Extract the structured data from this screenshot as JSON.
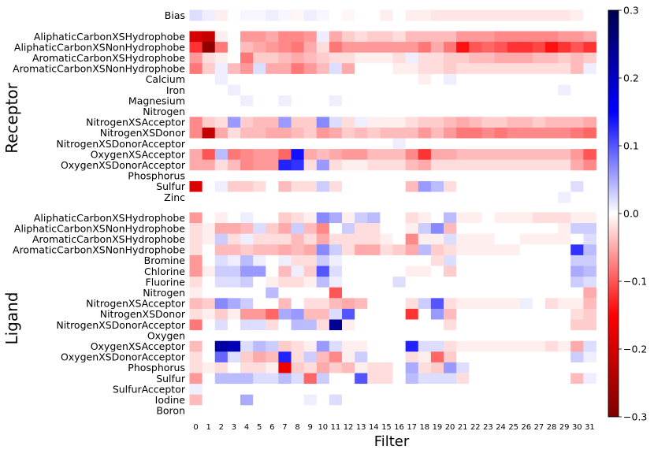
{
  "chart_data": {
    "type": "heatmap",
    "xlabel": "Filter",
    "x_ticks": [
      "0",
      "1",
      "2",
      "3",
      "4",
      "5",
      "6",
      "7",
      "8",
      "9",
      "10",
      "11",
      "12",
      "13",
      "14",
      "15",
      "16",
      "17",
      "18",
      "19",
      "20",
      "21",
      "22",
      "23",
      "24",
      "25",
      "26",
      "27",
      "28",
      "29",
      "30",
      "31"
    ],
    "group_labels": [
      "Receptor",
      "Ligand"
    ],
    "bias_label": "Bias",
    "receptor_rows": [
      "AliphaticCarbonXSHydrophobe",
      "AliphaticCarbonXSNonHydrophobe",
      "AromaticCarbonXSHydrophobe",
      "AromaticCarbonXSNonHydrophobe",
      "Calcium",
      "Iron",
      "Magnesium",
      "Nitrogen",
      "NitrogenXSAcceptor",
      "NitrogenXSDonor",
      "NitrogenXSDonorAcceptor",
      "OxygenXSAcceptor",
      "OxygenXSDonorAcceptor",
      "Phosphorus",
      "Sulfur",
      "Zinc"
    ],
    "ligand_rows": [
      "AliphaticCarbonXSHydrophobe",
      "AliphaticCarbonXSNonHydrophobe",
      "AromaticCarbonXSHydrophobe",
      "AromaticCarbonXSNonHydrophobe",
      "Bromine",
      "Chlorine",
      "Fluorine",
      "Nitrogen",
      "NitrogenXSAcceptor",
      "NitrogenXSDonor",
      "NitrogenXSDonorAcceptor",
      "Oxygen",
      "OxygenXSAcceptor",
      "OxygenXSDonorAcceptor",
      "Phosphorus",
      "Sulfur",
      "SulfurAcceptor",
      "Iodine",
      "Boron"
    ],
    "colorbar": {
      "min": -0.3,
      "max": 0.3,
      "colormap": "seismic_r",
      "ticks": [
        "0.3",
        "0.2",
        "0.1",
        "0.0",
        "−0.1",
        "−0.2",
        "−0.3"
      ]
    },
    "bias_values": [
      0.02,
      0.01,
      -0.01,
      0,
      0.005,
      0.005,
      0.01,
      0.005,
      -0.005,
      0.01,
      0.005,
      0,
      -0.005,
      0,
      0,
      -0.01,
      0,
      -0.01,
      -0.01,
      -0.015,
      -0.015,
      -0.015,
      -0.015,
      -0.015,
      -0.015,
      -0.015,
      -0.015,
      -0.015,
      -0.015,
      -0.015,
      -0.01,
      0
    ],
    "receptor_values": [
      [
        -0.2,
        -0.22,
        -0.01,
        0,
        -0.06,
        -0.06,
        -0.05,
        -0.07,
        -0.07,
        -0.06,
        0.01,
        -0.05,
        -0.03,
        -0.02,
        -0.03,
        -0.03,
        -0.02,
        -0.04,
        -0.04,
        -0.04,
        -0.04,
        -0.06,
        -0.06,
        -0.06,
        -0.07,
        -0.07,
        -0.07,
        -0.07,
        -0.07,
        -0.06,
        -0.06,
        -0.05
      ],
      [
        -0.12,
        -0.28,
        -0.08,
        0,
        -0.04,
        -0.05,
        -0.06,
        -0.07,
        -0.08,
        -0.05,
        -0.02,
        -0.08,
        -0.06,
        -0.06,
        -0.06,
        -0.06,
        -0.06,
        -0.06,
        -0.08,
        -0.05,
        -0.08,
        -0.14,
        -0.1,
        -0.09,
        -0.1,
        -0.12,
        -0.12,
        -0.11,
        -0.14,
        -0.12,
        -0.1,
        -0.12
      ],
      [
        -0.06,
        -0.02,
        -0.01,
        0,
        -0.08,
        -0.03,
        -0.03,
        -0.04,
        -0.05,
        -0.04,
        -0.03,
        -0.02,
        -0.02,
        -0.01,
        -0.01,
        -0.01,
        -0.02,
        0.01,
        -0.02,
        -0.02,
        -0.03,
        -0.03,
        -0.04,
        -0.04,
        -0.05,
        -0.05,
        -0.05,
        -0.04,
        -0.04,
        -0.03,
        -0.04,
        -0.03
      ],
      [
        -0.08,
        -0.03,
        0.01,
        -0.04,
        -0.06,
        0.02,
        -0.05,
        -0.05,
        -0.08,
        -0.06,
        -0.04,
        0.02,
        -0.05,
        0,
        0,
        0,
        -0.01,
        -0.01,
        -0.02,
        -0.02,
        -0.03,
        -0.02,
        -0.02,
        -0.02,
        -0.02,
        -0.02,
        -0.02,
        -0.02,
        -0.02,
        -0.02,
        -0.04,
        0.01
      ],
      [
        0,
        0,
        0.01,
        0,
        0,
        0,
        0,
        0,
        0,
        0,
        0,
        0,
        0,
        0,
        0,
        0,
        0,
        0,
        -0.01,
        0,
        0.01,
        0,
        0,
        0,
        0,
        0,
        0,
        0,
        0,
        0,
        0,
        0
      ],
      [
        0,
        0,
        0,
        0.01,
        0,
        0,
        0,
        0,
        0,
        0,
        0,
        0,
        0,
        0,
        0,
        0,
        0,
        0,
        0,
        0,
        0,
        0,
        0,
        0,
        0,
        0,
        0,
        0,
        0,
        0.01,
        0,
        0
      ],
      [
        0,
        0,
        0,
        0,
        0.01,
        0,
        0,
        0.01,
        0,
        0,
        0,
        0.01,
        0,
        0,
        0,
        0,
        0,
        0,
        0,
        0,
        0,
        0,
        0,
        0,
        0,
        0,
        0,
        0,
        0,
        0,
        0,
        0
      ],
      [
        0,
        0,
        0,
        0,
        0,
        0,
        0,
        0,
        0,
        0,
        0,
        0,
        0,
        0,
        0,
        0,
        0,
        0,
        0,
        0,
        0,
        0,
        0,
        0,
        0,
        0,
        0,
        0,
        0,
        0,
        0,
        0
      ],
      [
        -0.07,
        -0.03,
        -0.02,
        0.06,
        -0.03,
        -0.04,
        -0.04,
        0.06,
        -0.03,
        -0.03,
        0.07,
        0.02,
        -0.02,
        0.01,
        -0.01,
        -0.01,
        -0.01,
        -0.02,
        -0.03,
        -0.03,
        -0.04,
        -0.05,
        -0.04,
        -0.03,
        -0.03,
        -0.04,
        -0.04,
        -0.03,
        -0.04,
        -0.04,
        -0.04,
        -0.05
      ],
      [
        -0.07,
        -0.22,
        -0.05,
        -0.02,
        -0.04,
        -0.04,
        -0.05,
        -0.05,
        -0.04,
        -0.03,
        -0.06,
        -0.05,
        -0.03,
        -0.04,
        -0.03,
        -0.04,
        -0.04,
        -0.04,
        -0.06,
        -0.04,
        -0.06,
        -0.08,
        -0.08,
        -0.07,
        -0.08,
        -0.07,
        -0.07,
        -0.07,
        -0.07,
        -0.07,
        -0.08,
        -0.09
      ],
      [
        0,
        0,
        0,
        0,
        0,
        0,
        0,
        0,
        0,
        0,
        0,
        0,
        0,
        0,
        0,
        0,
        0.01,
        0,
        0,
        0,
        0,
        0,
        0,
        0,
        0,
        0,
        0,
        0,
        0,
        0,
        0,
        0
      ],
      [
        -0.05,
        -0.1,
        0.04,
        -0.08,
        -0.07,
        -0.06,
        -0.06,
        -0.09,
        0.14,
        -0.05,
        -0.04,
        -0.05,
        -0.06,
        -0.06,
        -0.04,
        -0.04,
        -0.04,
        -0.07,
        -0.12,
        -0.05,
        -0.05,
        -0.04,
        -0.04,
        -0.04,
        -0.04,
        -0.04,
        -0.04,
        -0.04,
        -0.04,
        -0.04,
        -0.06,
        -0.1
      ],
      [
        -0.05,
        -0.05,
        -0.02,
        -0.04,
        -0.07,
        -0.06,
        -0.06,
        0.13,
        0.12,
        -0.02,
        0.06,
        -0.02,
        -0.01,
        -0.01,
        -0.02,
        -0.02,
        -0.02,
        -0.04,
        -0.05,
        -0.02,
        -0.02,
        -0.02,
        -0.02,
        -0.02,
        -0.02,
        -0.02,
        -0.02,
        -0.02,
        -0.02,
        -0.02,
        -0.05,
        -0.07
      ],
      [
        0,
        0,
        0,
        0,
        0,
        0,
        0,
        0,
        0,
        0,
        0,
        0,
        0,
        0,
        0,
        0,
        0,
        0,
        0,
        0,
        0,
        0,
        0,
        0,
        0,
        0,
        0,
        0,
        0,
        0,
        0,
        0
      ],
      [
        -0.19,
        0,
        0.01,
        -0.03,
        -0.03,
        -0.02,
        0,
        -0.04,
        -0.02,
        -0.02,
        0.03,
        -0.02,
        0,
        0,
        0,
        0,
        0,
        -0.04,
        0.06,
        0.04,
        -0.02,
        0,
        0,
        0,
        0,
        0,
        0,
        0,
        0,
        0,
        0.02,
        0
      ],
      [
        0,
        0,
        0,
        0,
        0,
        0,
        0,
        0,
        0,
        0,
        0,
        0,
        0,
        0,
        0,
        0,
        0,
        0,
        0,
        0,
        0,
        0,
        0,
        0,
        0,
        0,
        0,
        0,
        0,
        0.01,
        0,
        0
      ]
    ],
    "ligand_values": [
      [
        -0.06,
        0,
        -0.01,
        0,
        0.01,
        0,
        0,
        -0.03,
        -0.02,
        -0.01,
        0.07,
        0.05,
        -0.01,
        0.03,
        0.04,
        0,
        0,
        -0.02,
        -0.01,
        0,
        0.04,
        -0.01,
        -0.01,
        0,
        -0.01,
        -0.01,
        -0.01,
        -0.02,
        -0.02,
        -0.02,
        -0.01,
        -0.01
      ],
      [
        -0.02,
        -0.01,
        -0.05,
        -0.05,
        -0.04,
        0.02,
        -0.03,
        -0.05,
        0.03,
        -0.04,
        -0.07,
        0,
        0.03,
        -0.02,
        -0.02,
        0,
        0,
        -0.01,
        0.03,
        0.07,
        -0.04,
        0,
        0,
        0,
        0,
        0,
        0,
        0,
        0,
        -0.01,
        0.03,
        0.03
      ],
      [
        -0.02,
        -0.01,
        0.03,
        -0.02,
        0.01,
        -0.02,
        -0.02,
        -0.02,
        -0.04,
        -0.02,
        -0.05,
        -0.02,
        -0.02,
        -0.02,
        -0.02,
        -0.01,
        0,
        -0.07,
        -0.01,
        -0.01,
        0.02,
        -0.01,
        -0.01,
        -0.01,
        0,
        0,
        -0.01,
        -0.01,
        -0.01,
        -0.01,
        0,
        0.02
      ],
      [
        -0.02,
        0,
        -0.04,
        -0.04,
        -0.03,
        -0.04,
        -0.04,
        -0.05,
        -0.04,
        -0.05,
        0.07,
        0.03,
        -0.02,
        -0.05,
        -0.05,
        -0.02,
        -0.03,
        -0.05,
        0.04,
        -0.03,
        -0.02,
        -0.01,
        -0.01,
        -0.01,
        -0.01,
        -0.01,
        0,
        0,
        0,
        0,
        0.12,
        0.04
      ],
      [
        -0.06,
        0,
        0.02,
        0.01,
        0.04,
        0.01,
        0,
        0.01,
        -0.02,
        -0.02,
        0.03,
        0.01,
        0,
        0,
        0,
        0,
        0,
        0,
        0,
        -0.02,
        0.02,
        0,
        0,
        0,
        0,
        0,
        0,
        0,
        0,
        0,
        0.03,
        0.03
      ],
      [
        -0.06,
        -0.01,
        0.03,
        0.03,
        0.06,
        0.06,
        0,
        -0.04,
        0.01,
        -0.03,
        0.1,
        0.02,
        0,
        0,
        0,
        0,
        0,
        -0.01,
        -0.01,
        0,
        -0.03,
        0,
        0,
        0,
        0,
        0,
        0,
        0,
        0,
        0,
        0.05,
        0.04
      ],
      [
        -0.02,
        0,
        0.02,
        0.02,
        0.03,
        0,
        -0.01,
        -0.02,
        -0.02,
        -0.01,
        0.04,
        0.01,
        0,
        0,
        0,
        0,
        0.02,
        0,
        0,
        0,
        0,
        0,
        0,
        0,
        0,
        0,
        0,
        0,
        0,
        0,
        0.03,
        0.02
      ],
      [
        -0.01,
        0,
        0,
        0,
        0,
        0,
        0.04,
        0,
        0,
        0,
        0,
        -0.1,
        0,
        0,
        0,
        0,
        0,
        0,
        0,
        0,
        0,
        0,
        0,
        0,
        0,
        0,
        0,
        0,
        0,
        0,
        0,
        -0.05
      ],
      [
        -0.04,
        -0.03,
        0.07,
        0.05,
        0.03,
        0,
        0,
        -0.04,
        0,
        -0.02,
        -0.02,
        -0.04,
        -0.05,
        -0.04,
        0,
        0,
        0,
        -0.02,
        0.03,
        0.1,
        -0.02,
        -0.01,
        -0.01,
        -0.01,
        -0.01,
        -0.01,
        0.01,
        0,
        -0.02,
        -0.01,
        -0.01,
        -0.04
      ],
      [
        -0.02,
        -0.01,
        -0.03,
        -0.01,
        -0.06,
        -0.06,
        -0.09,
        0.05,
        0.06,
        -0.04,
        -0.04,
        0.02,
        0.1,
        0,
        0,
        0,
        0,
        -0.12,
        0,
        0.06,
        -0.04,
        0,
        0,
        0,
        0,
        0,
        0,
        0,
        0,
        0,
        -0.02,
        -0.03
      ],
      [
        -0.08,
        0,
        0.02,
        0,
        0.02,
        0.02,
        -0.02,
        0,
        0.04,
        0.04,
        -0.02,
        0.24,
        -0.01,
        0,
        0,
        0,
        0,
        0,
        0,
        0,
        -0.02,
        0,
        0,
        0,
        0,
        0,
        0,
        0,
        0,
        0,
        -0.03,
        -0.03
      ],
      [
        0,
        0,
        0,
        0,
        0,
        0,
        0,
        0,
        0,
        0,
        0,
        0,
        0,
        0,
        0,
        0,
        0,
        0,
        0,
        0,
        0,
        0,
        0,
        0,
        0,
        0,
        0,
        0,
        0,
        0,
        0,
        0
      ],
      [
        -0.04,
        0,
        0.23,
        0.21,
        0.02,
        0.04,
        0.03,
        -0.03,
        -0.02,
        -0.01,
        0.06,
        0.02,
        -0.01,
        -0.01,
        0,
        0,
        0,
        0.13,
        0.02,
        0.02,
        -0.02,
        -0.01,
        -0.01,
        -0.01,
        -0.01,
        -0.01,
        -0.01,
        -0.01,
        -0.02,
        -0.01,
        -0.05,
        0.02
      ],
      [
        -0.02,
        0,
        0.09,
        0.02,
        -0.03,
        -0.05,
        -0.04,
        0.13,
        -0.02,
        0.03,
        -0.04,
        -0.07,
        -0.01,
        0.03,
        0,
        0,
        0,
        -0.02,
        -0.01,
        -0.09,
        -0.03,
        0,
        0,
        0,
        0,
        0,
        0,
        0,
        0,
        0,
        0.03,
        0.01
      ],
      [
        -0.02,
        -0.01,
        -0.02,
        0,
        -0.02,
        -0.02,
        -0.01,
        -0.17,
        -0.03,
        -0.02,
        -0.05,
        -0.03,
        -0.04,
        -0.01,
        -0.02,
        -0.02,
        0,
        0.05,
        -0.02,
        -0.03,
        0.06,
        0.02,
        0,
        0,
        0,
        0,
        0,
        0,
        0,
        0,
        0,
        0
      ],
      [
        -0.06,
        0,
        0.04,
        0.04,
        0.04,
        0.02,
        0.02,
        0.04,
        0.02,
        -0.09,
        0.03,
        0,
        0,
        0.1,
        -0.02,
        -0.02,
        0,
        0.04,
        0.02,
        0.02,
        0.02,
        -0.02,
        0,
        0,
        0,
        0,
        0,
        0,
        0,
        0,
        -0.04,
        0.01
      ],
      [
        0.01,
        0,
        0,
        0,
        0,
        0,
        0,
        0,
        0,
        0,
        0,
        0,
        0,
        0,
        0,
        0,
        0,
        0,
        0,
        0,
        0,
        0,
        0,
        0,
        0,
        0,
        0,
        0,
        0,
        0,
        0,
        0
      ],
      [
        -0.04,
        0,
        0,
        0,
        0.05,
        0,
        0,
        0,
        0,
        0.01,
        0,
        0.02,
        0,
        0,
        0,
        0,
        0,
        0,
        0,
        0,
        0,
        0,
        0,
        0,
        0,
        0,
        0,
        0,
        0,
        0,
        0,
        0
      ],
      [
        0,
        0,
        0,
        0,
        0,
        0,
        0,
        0,
        0,
        0,
        0,
        0,
        0,
        0,
        0,
        0,
        0,
        0,
        0,
        0,
        0,
        0,
        0,
        0,
        0,
        0,
        0,
        0,
        0,
        0,
        0,
        0
      ]
    ]
  }
}
